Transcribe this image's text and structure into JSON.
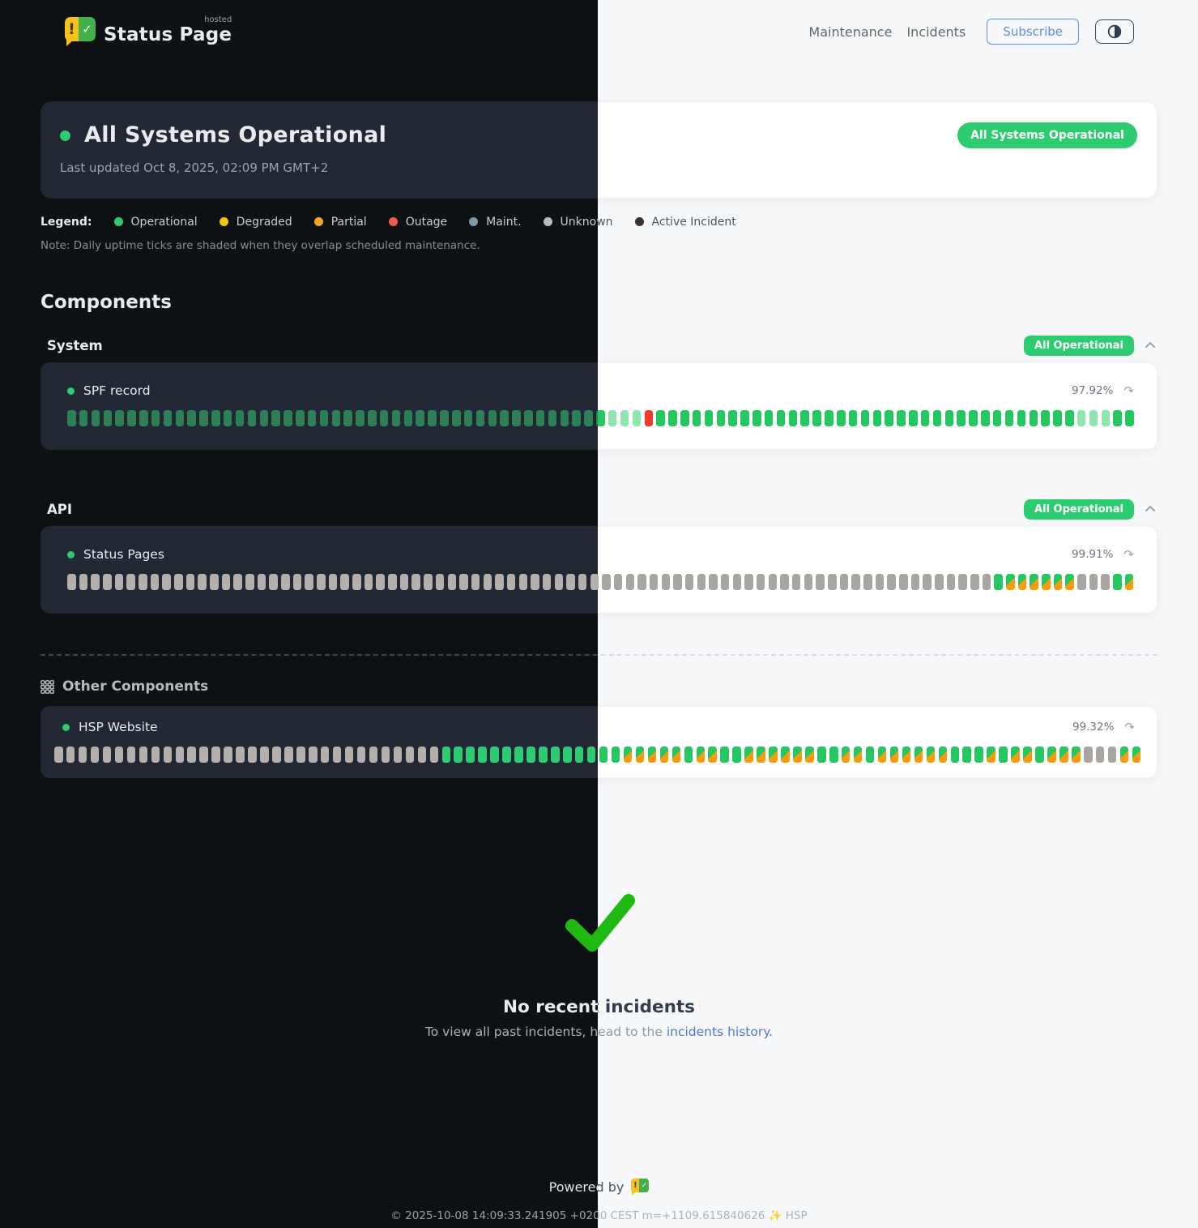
{
  "brand": {
    "name": "Status Page",
    "tag": "hosted"
  },
  "nav": {
    "maintenance": "Maintenance",
    "incidents": "Incidents",
    "subscribe": "Subscribe"
  },
  "status": {
    "title": "All Systems Operational",
    "last_updated": "Last updated Oct 8, 2025, 02:09 PM GMT+2",
    "badge": "All Systems Operational"
  },
  "legend": {
    "label": "Legend:",
    "items": [
      {
        "label": "Operational",
        "color": "#2ecc71"
      },
      {
        "label": "Degraded",
        "color": "#f1c40f"
      },
      {
        "label": "Partial",
        "color": "#f5a623"
      },
      {
        "label": "Outage",
        "color": "#ee5a4e"
      },
      {
        "label": "Maint.",
        "color": "#7e98a8"
      },
      {
        "label": "Unknown",
        "color": "#b9bcbe"
      },
      {
        "label": "Active Incident",
        "color": "#3a332f"
      }
    ],
    "note": "Note: Daily uptime ticks are shaded when they overlap scheduled maintenance."
  },
  "components_heading": "Components",
  "groups": [
    {
      "name": "System",
      "badge": "All Operational",
      "components": [
        {
          "name": "SPF record",
          "uptime": "97.92%",
          "ticks": "OOOOOOOOOOOOOOOOOOOOOOOOOOOOOOOOOOOOOOOOOOOOOMMMXOOOOOOOOOOOOOOOOOOOOOOOOOOOOOOOOOOOMMMOO"
        }
      ]
    },
    {
      "name": "API",
      "badge": "All Operational",
      "components": [
        {
          "name": "Status Pages",
          "uptime": "99.91%",
          "ticks": "UUUUUUUUUUUUUUUUUUUUUUUUUUUUUUUUUUUUUUUUUUUUUUUUUUUUUUUUUUUUUUUUUUUUUUUUUUUUUUOSSSSSSUUUOS"
        }
      ]
    }
  ],
  "other": {
    "heading": "Other Components",
    "components": [
      {
        "name": "HSP Website",
        "uptime": "99.32%",
        "ticks": "UUUUUUUUUUUUUUUUUUUUUUUUUUUUUUUUOOOOOOOOOOOOOOOSSSSSOSSOOSSSSSSOOSSOSSSSSSOOOSOSSOSSSUUUSS"
      }
    ]
  },
  "tick_meaning": {
    "O": "operational",
    "M": "operational-during-scheduled-maintenance",
    "X": "outage",
    "U": "unknown",
    "S": "partial-then-operational"
  },
  "incidents": {
    "title": "No recent incidents",
    "subtext": "To view all past incidents, head to the ",
    "link_label": "incidents history."
  },
  "footer": {
    "powered_by": "Powered by",
    "copyright": "© 2025-10-08 14:09:33.241905 +0200 CEST m=+1109.615840626 ✨ HSP"
  },
  "icons": {
    "refresh": "↷",
    "logo_exclaim": "!",
    "logo_check": "✓"
  },
  "colors": {
    "accent_green": "#2ecc71",
    "tick_operational_light": "#24c760",
    "tick_operational_dark": "#2c7f57",
    "tick_maintenance_shaded": "#90e6af",
    "tick_outage_red": "#f2392c",
    "tick_unknown_gray": "#a9a6a2",
    "tick_partial_orange": "#f89c0c",
    "link_blue": "#4f74dd",
    "subscribe_blue": "#5b8def",
    "check_green": "#1fb911",
    "logo_yellow": "#f6c21b",
    "logo_green": "#43b14b"
  }
}
